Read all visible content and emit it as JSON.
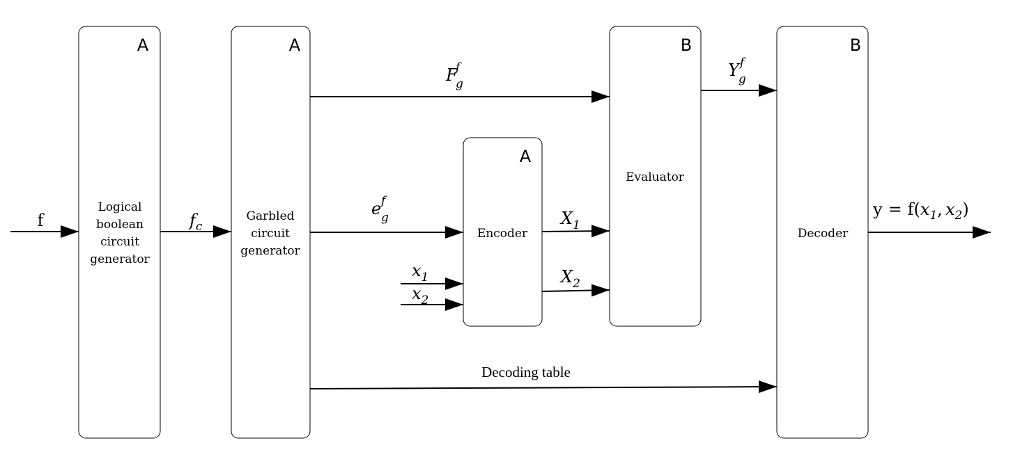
{
  "blocks": [
    {
      "id": "logical",
      "party": "A",
      "label_lines": [
        "Logical",
        "boolean",
        "circuit",
        "generator"
      ]
    },
    {
      "id": "garbled",
      "party": "A",
      "label_lines": [
        "Garbled",
        "circuit",
        "generator"
      ]
    },
    {
      "id": "encoder",
      "party": "A",
      "label_lines": [
        "Encoder"
      ]
    },
    {
      "id": "evaluator",
      "party": "B",
      "label_lines": [
        "Evaluator"
      ]
    },
    {
      "id": "decoder",
      "party": "B",
      "label_lines": [
        "Decoder"
      ]
    }
  ],
  "signals": {
    "input_f": "f",
    "fc": {
      "base": "f",
      "sub": "c"
    },
    "Fgf": {
      "base": "F",
      "sub": "g",
      "sup": "f"
    },
    "egf": {
      "base": "e",
      "sub": "g",
      "sup": "f"
    },
    "x1": {
      "base": "x",
      "sub": "1"
    },
    "x2": {
      "base": "x",
      "sub": "2"
    },
    "X1": {
      "base": "X",
      "sub": "1"
    },
    "X2": {
      "base": "X",
      "sub": "2"
    },
    "Ygf": {
      "base": "Y",
      "sub": "g",
      "sup": "f"
    },
    "decoding_table": "Decoding table",
    "output": {
      "lhs": "y",
      "eq": "=",
      "func": "f(",
      "arg1": "x",
      "arg1_sub": "1",
      "comma": ",",
      "arg2": "x",
      "arg2_sub": "2",
      "close": ")"
    }
  }
}
